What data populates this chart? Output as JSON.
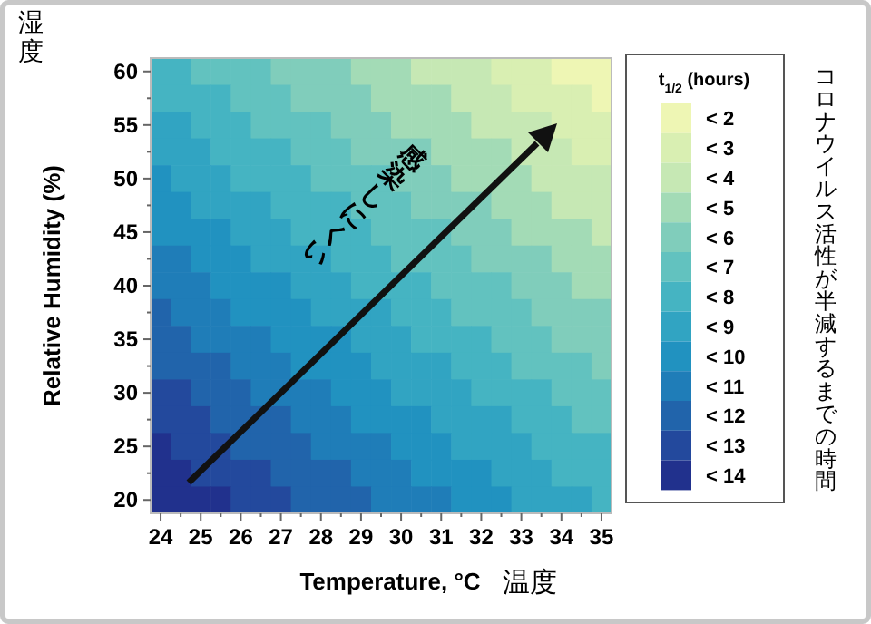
{
  "chart_data": {
    "type": "heatmap",
    "xlabel": "Temperature, °C",
    "ylabel": "Relative Humidity (%)",
    "legend_title": "t$_{1/2}$ (hours)",
    "annotations": [
      "温度",
      "湿度",
      "感染しにくい",
      "コロナウイルス活性が半減するまでの時間"
    ],
    "categories": [
      "24",
      null,
      "25",
      null,
      "26",
      null,
      "27",
      null,
      "28",
      null,
      "29",
      null,
      "30",
      null,
      "31",
      null,
      "32",
      null,
      "33",
      null,
      "34",
      null,
      "35"
    ],
    "y_categories": [
      "60",
      null,
      "55",
      null,
      "50",
      null,
      "45",
      null,
      "40",
      null,
      "35",
      null,
      "30",
      null,
      "25",
      null,
      "20"
    ],
    "clim": [
      1.5,
      14.5
    ],
    "cticks": [
      {
        "value": 2,
        "label": "< 2"
      },
      {
        "value": 3,
        "label": "< 3"
      },
      {
        "value": 4,
        "label": "< 4"
      },
      {
        "value": 5,
        "label": "< 5"
      },
      {
        "value": 6,
        "label": "< 6"
      },
      {
        "value": 7,
        "label": "< 7"
      },
      {
        "value": 8,
        "label": "< 8"
      },
      {
        "value": 9,
        "label": "< 9"
      },
      {
        "value": 10,
        "label": "< 10"
      },
      {
        "value": 11,
        "label": "< 11"
      },
      {
        "value": 12,
        "label": "< 12"
      },
      {
        "value": 13,
        "label": "< 13"
      },
      {
        "value": 14,
        "label": "< 14"
      }
    ],
    "colors": [
      "#eef6b4",
      "#d9efb2",
      "#c6e8b4",
      "#a3dbb6",
      "#80cdbb",
      "#62c2bf",
      "#45b4c2",
      "#31a4c2",
      "#2192c0",
      "#1f7db8",
      "#2164ab",
      "#23499d",
      "#21318d"
    ],
    "cells": [
      [
        8,
        8,
        7,
        7,
        7,
        7,
        6,
        6,
        6,
        6,
        5,
        5,
        5,
        4,
        4,
        4,
        4,
        3,
        3,
        3,
        2,
        2,
        2
      ],
      [
        8,
        8,
        8,
        8,
        7,
        7,
        7,
        6,
        6,
        6,
        6,
        5,
        5,
        5,
        5,
        4,
        4,
        4,
        3,
        3,
        3,
        3,
        2
      ],
      [
        9,
        9,
        8,
        8,
        8,
        7,
        7,
        7,
        7,
        6,
        6,
        6,
        5,
        5,
        5,
        5,
        4,
        4,
        4,
        4,
        3,
        3,
        3
      ],
      [
        9,
        9,
        9,
        8,
        8,
        8,
        8,
        7,
        7,
        7,
        6,
        6,
        6,
        6,
        5,
        5,
        5,
        5,
        4,
        4,
        4,
        3,
        3
      ],
      [
        10,
        9,
        9,
        9,
        8,
        8,
        8,
        8,
        7,
        7,
        7,
        7,
        6,
        6,
        6,
        5,
        5,
        5,
        5,
        4,
        4,
        4,
        4
      ],
      [
        10,
        10,
        9,
        9,
        9,
        9,
        8,
        8,
        8,
        8,
        7,
        7,
        7,
        6,
        6,
        6,
        6,
        5,
        5,
        5,
        4,
        4,
        4
      ],
      [
        10,
        10,
        10,
        10,
        9,
        9,
        9,
        8,
        8,
        8,
        8,
        7,
        7,
        7,
        7,
        6,
        6,
        6,
        5,
        5,
        5,
        5,
        4
      ],
      [
        11,
        11,
        10,
        10,
        10,
        9,
        9,
        9,
        9,
        8,
        8,
        8,
        7,
        7,
        7,
        7,
        6,
        6,
        6,
        6,
        5,
        5,
        5
      ],
      [
        11,
        11,
        11,
        10,
        10,
        10,
        10,
        9,
        9,
        9,
        8,
        8,
        8,
        8,
        7,
        7,
        7,
        7,
        6,
        6,
        6,
        5,
        5
      ],
      [
        12,
        11,
        11,
        11,
        10,
        10,
        10,
        10,
        9,
        9,
        9,
        9,
        8,
        8,
        8,
        7,
        7,
        7,
        7,
        6,
        6,
        6,
        6
      ],
      [
        12,
        12,
        11,
        11,
        11,
        11,
        10,
        10,
        10,
        10,
        9,
        9,
        9,
        8,
        8,
        8,
        8,
        7,
        7,
        7,
        6,
        6,
        6
      ],
      [
        12,
        12,
        12,
        12,
        11,
        11,
        11,
        10,
        10,
        10,
        10,
        9,
        9,
        9,
        9,
        8,
        8,
        8,
        7,
        7,
        7,
        7,
        6
      ],
      [
        13,
        13,
        12,
        12,
        12,
        11,
        11,
        11,
        11,
        10,
        10,
        10,
        9,
        9,
        9,
        9,
        8,
        8,
        8,
        8,
        7,
        7,
        7
      ],
      [
        13,
        13,
        13,
        12,
        12,
        12,
        12,
        11,
        11,
        11,
        10,
        10,
        10,
        10,
        9,
        9,
        9,
        9,
        8,
        8,
        8,
        7,
        7
      ],
      [
        14,
        13,
        13,
        13,
        12,
        12,
        12,
        12,
        11,
        11,
        11,
        11,
        10,
        10,
        10,
        9,
        9,
        9,
        9,
        8,
        8,
        8,
        8
      ],
      [
        14,
        14,
        13,
        13,
        13,
        13,
        12,
        12,
        12,
        12,
        11,
        11,
        11,
        10,
        10,
        10,
        10,
        9,
        9,
        9,
        8,
        8,
        8
      ],
      [
        14,
        14,
        14,
        14,
        13,
        13,
        13,
        12,
        12,
        12,
        12,
        11,
        11,
        11,
        11,
        10,
        10,
        10,
        9,
        9,
        9,
        9,
        8
      ]
    ]
  }
}
